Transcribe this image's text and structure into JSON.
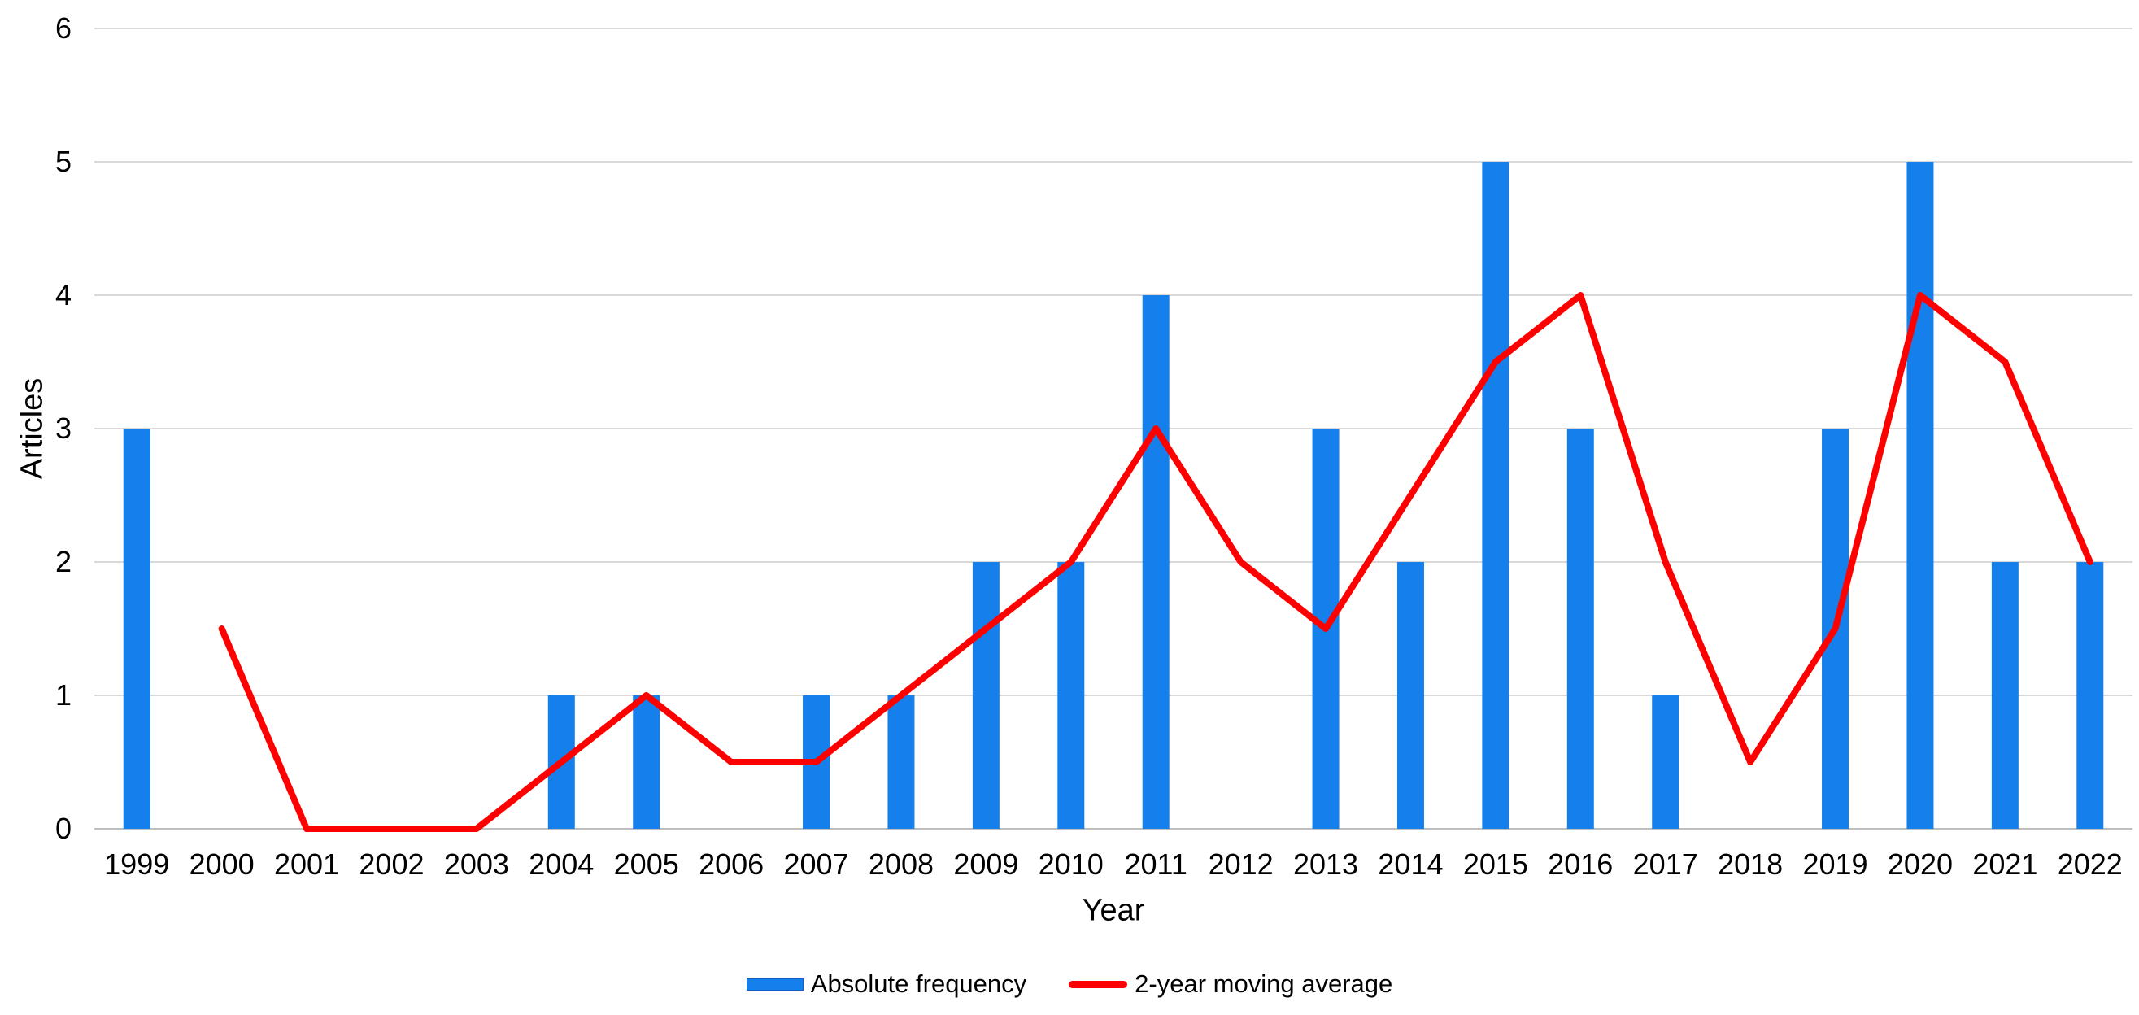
{
  "chart_data": {
    "type": "bar",
    "title": "",
    "xlabel": "Year",
    "ylabel": "Articles",
    "categories": [
      "1999",
      "2000",
      "2001",
      "2002",
      "2003",
      "2004",
      "2005",
      "2006",
      "2007",
      "2008",
      "2009",
      "2010",
      "2011",
      "2012",
      "2013",
      "2014",
      "2015",
      "2016",
      "2017",
      "2018",
      "2019",
      "2020",
      "2021",
      "2022"
    ],
    "series": [
      {
        "name": "Absolute frequency",
        "type": "bar",
        "color": "#1580EC",
        "values": [
          3,
          0,
          0,
          0,
          0,
          1,
          1,
          0,
          1,
          1,
          2,
          2,
          4,
          0,
          3,
          2,
          5,
          3,
          1,
          0,
          3,
          5,
          2,
          2
        ]
      },
      {
        "name": "2-year moving average",
        "type": "line",
        "color": "#FF0000",
        "values": [
          null,
          1.5,
          0,
          0,
          0,
          0.5,
          1,
          0.5,
          0.5,
          1,
          1.5,
          2,
          3,
          2,
          1.5,
          2.5,
          3.5,
          4,
          2,
          0.5,
          1.5,
          4,
          3.5,
          2
        ]
      }
    ],
    "ylim": [
      0,
      6
    ],
    "yticks": [
      0,
      1,
      2,
      3,
      4,
      5,
      6
    ],
    "grid": true,
    "grid_color": "#D9D9D9",
    "axis_color": "#BFBFBF",
    "text_color": "#000000",
    "legend_position": "bottom"
  }
}
